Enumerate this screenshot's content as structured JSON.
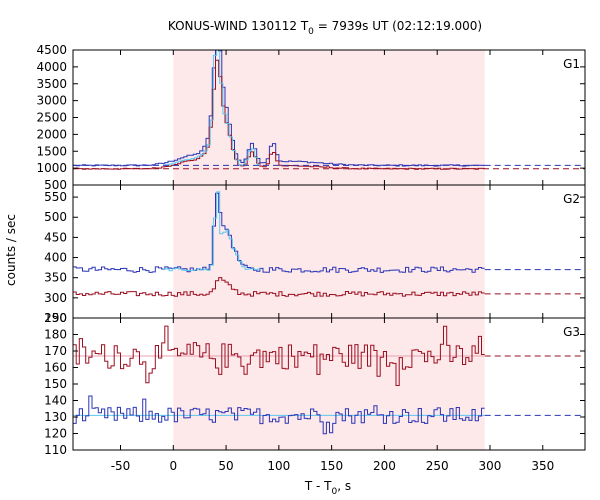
{
  "chart_data": {
    "type": "line",
    "title": "KONUS-WIND 130112 T",
    "title_sub": "0",
    "title_rest": " = 7939s UT (02:12:19.000)",
    "xlabel_main": "T - T",
    "xlabel_sub": "0",
    "xlabel_rest": ", s",
    "ylabel": "counts / sec",
    "xlim": [
      -95,
      390
    ],
    "x_ticks": [
      -50,
      0,
      50,
      100,
      150,
      200,
      250,
      300,
      350
    ],
    "x_tick_labels": [
      "-50",
      "0",
      "50",
      "100",
      "150",
      "200",
      "250",
      "300",
      "350"
    ],
    "shaded_interval": [
      0,
      295
    ],
    "colors": {
      "red": "#9b0f20",
      "blue": "#2b35b5",
      "cyan": "#5ac8ee",
      "pink": "#e8a0b0",
      "shade": "#fde8ea"
    },
    "panels": [
      {
        "name": "G1",
        "ylim": [
          500,
          4500
        ],
        "y_ticks": [
          500,
          1000,
          1500,
          2000,
          2500,
          3000,
          3500,
          4000,
          4500
        ],
        "y_tick_labels": [
          "500",
          "1000",
          "1500",
          "2000",
          "2500",
          "3000",
          "3500",
          "4000",
          "4500"
        ],
        "background_blue": 1080,
        "background_red": 980,
        "series": {
          "blue": {
            "kind": "curve",
            "base": 1080,
            "noise": 20,
            "pulses": [
              [
                40,
                5,
                2700
              ],
              [
                48,
                8,
                1400
              ],
              [
                37,
                10,
                600
              ],
              [
                20,
                25,
                300
              ],
              [
                73,
                5,
                600
              ],
              [
                93,
                4,
                600
              ],
              [
                110,
                40,
                120
              ]
            ]
          },
          "red": {
            "kind": "curve",
            "base": 980,
            "noise": 18,
            "pulses": [
              [
                40,
                5,
                2200
              ],
              [
                48,
                8,
                1100
              ],
              [
                37,
                10,
                500
              ],
              [
                20,
                25,
                250
              ],
              [
                73,
                5,
                450
              ],
              [
                93,
                4,
                450
              ],
              [
                110,
                40,
                90
              ]
            ]
          },
          "cyan": {
            "kind": "curve",
            "base": 1030,
            "noise": 10,
            "pulses": [
              [
                40,
                4,
                3100
              ],
              [
                48,
                8,
                1200
              ],
              [
                37,
                10,
                500
              ],
              [
                20,
                25,
                250
              ],
              [
                73,
                5,
                550
              ],
              [
                93,
                4,
                600
              ]
            ]
          }
        }
      },
      {
        "name": "G2",
        "ylim": [
          250,
          580
        ],
        "y_ticks": [
          250,
          300,
          350,
          400,
          450,
          500,
          550
        ],
        "y_tick_labels": [
          "250",
          "300",
          "350",
          "400",
          "450",
          "500",
          "550"
        ],
        "background_blue": 370,
        "background_red": 310,
        "series": {
          "blue": {
            "kind": "curve",
            "base": 370,
            "noise": 7,
            "pulses": [
              [
                40,
                4,
                180
              ],
              [
                48,
                6,
                80
              ],
              [
                55,
                8,
                40
              ]
            ]
          },
          "red": {
            "kind": "curve",
            "base": 310,
            "noise": 6,
            "pulses": [
              [
                42,
                5,
                30
              ],
              [
                50,
                8,
                20
              ]
            ]
          },
          "cyan": {
            "kind": "curve",
            "base": 370,
            "noise": 3,
            "pulses": [
              [
                40,
                3,
                190
              ],
              [
                48,
                6,
                80
              ],
              [
                55,
                8,
                40
              ]
            ]
          }
        }
      },
      {
        "name": "G3",
        "ylim": [
          110,
          190
        ],
        "y_ticks": [
          110,
          120,
          130,
          140,
          150,
          160,
          170,
          180,
          190
        ],
        "y_tick_labels": [
          "110",
          "120",
          "130",
          "140",
          "150",
          "160",
          "170",
          "180",
          "190"
        ],
        "background_blue": 131,
        "background_red": 167,
        "series": {
          "red": {
            "kind": "noise",
            "base": 167,
            "amp": 8
          },
          "blue": {
            "kind": "noise",
            "base": 131,
            "amp": 5
          },
          "pink_fit": {
            "kind": "flat",
            "value": 167
          },
          "cyan_fit": {
            "kind": "flat",
            "value": 131
          }
        }
      }
    ]
  }
}
